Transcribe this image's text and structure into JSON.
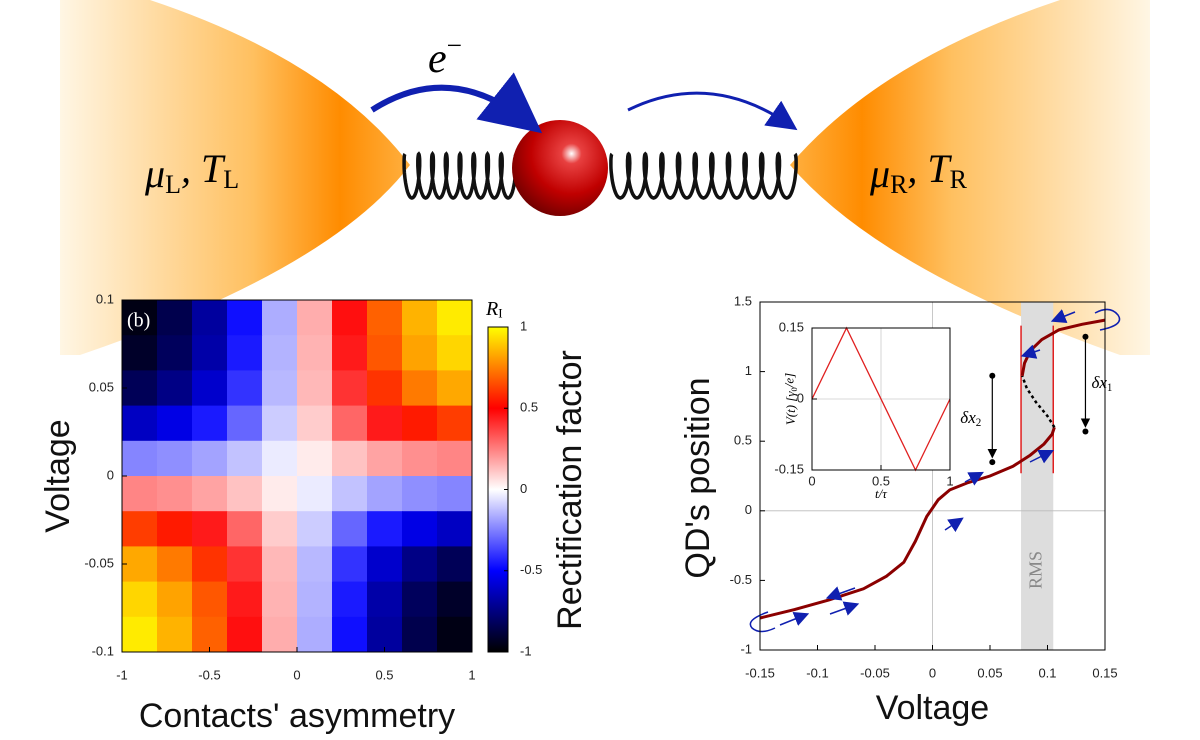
{
  "diagram": {
    "electron": [
      "e",
      "−"
    ],
    "left_lead": [
      "μ",
      "L",
      ", ",
      "T",
      "L"
    ],
    "right_lead": [
      "μ",
      "R",
      ", ",
      "T",
      "R"
    ]
  },
  "chart_data": [
    {
      "type": "heatmap",
      "annotation": "(b)",
      "xlabel": "Contacts' asymmetry",
      "ylabel": "Voltage",
      "x": [
        -0.9,
        -0.7,
        -0.5,
        -0.3,
        -0.1,
        0.1,
        0.3,
        0.5,
        0.7,
        0.9
      ],
      "y": [
        0.09,
        0.07,
        0.05,
        0.03,
        0.01,
        -0.01,
        -0.03,
        -0.05,
        -0.07,
        -0.09
      ],
      "z": [
        [
          -0.96,
          -0.85,
          -0.69,
          -0.47,
          -0.16,
          0.16,
          0.47,
          0.69,
          0.85,
          0.96
        ],
        [
          -0.92,
          -0.82,
          -0.67,
          -0.45,
          -0.15,
          0.15,
          0.45,
          0.67,
          0.82,
          0.92
        ],
        [
          -0.83,
          -0.74,
          -0.6,
          -0.4,
          -0.14,
          0.14,
          0.4,
          0.6,
          0.74,
          0.83
        ],
        [
          -0.62,
          -0.55,
          -0.45,
          -0.3,
          -0.1,
          0.1,
          0.3,
          0.45,
          0.55,
          0.62
        ],
        [
          -0.24,
          -0.22,
          -0.18,
          -0.12,
          -0.04,
          0.04,
          0.12,
          0.18,
          0.22,
          0.24
        ],
        [
          0.24,
          0.22,
          0.18,
          0.12,
          0.04,
          -0.04,
          -0.12,
          -0.18,
          -0.22,
          -0.24
        ],
        [
          0.62,
          0.55,
          0.45,
          0.3,
          0.1,
          -0.1,
          -0.3,
          -0.45,
          -0.55,
          -0.62
        ],
        [
          0.83,
          0.74,
          0.6,
          0.4,
          0.14,
          -0.14,
          -0.4,
          -0.6,
          -0.74,
          -0.83
        ],
        [
          0.92,
          0.82,
          0.67,
          0.45,
          0.15,
          -0.15,
          -0.45,
          -0.67,
          -0.82,
          -0.92
        ],
        [
          0.96,
          0.85,
          0.69,
          0.47,
          0.16,
          -0.16,
          -0.47,
          -0.69,
          -0.85,
          -0.96
        ]
      ],
      "xlim": [
        -1,
        1
      ],
      "xticks": [
        -1,
        -0.5,
        0,
        0.5,
        1
      ],
      "ylim": [
        -0.1,
        0.1
      ],
      "yticks": [
        -0.1,
        -0.05,
        0,
        0.05,
        0.1
      ],
      "colorscale": [
        "#000000",
        "#0000ff",
        "#ffffff",
        "#ff0000",
        "#ffff00"
      ],
      "colorbar": {
        "label": [
          "R",
          "I"
        ],
        "title": "Rectification factor",
        "lim": [
          -1,
          1
        ],
        "ticks": [
          -1,
          -0.5,
          0,
          0.5,
          1
        ]
      }
    },
    {
      "type": "line",
      "xlabel": "Voltage",
      "ylabel": "QD's position",
      "xlim": [
        -0.15,
        0.15
      ],
      "xticks": [
        -0.15,
        -0.1,
        -0.05,
        0,
        0.05,
        0.1,
        0.15
      ],
      "ylim": [
        -1,
        1.5
      ],
      "yticks": [
        -1,
        -0.5,
        0,
        0.5,
        1,
        1.5
      ],
      "zero_lines": true,
      "series": [
        {
          "color": "#8b0000",
          "x": [
            -0.15,
            -0.12,
            -0.09,
            -0.06,
            -0.04,
            -0.025,
            -0.015,
            -0.005,
            0.005,
            0.015,
            0.03,
            0.05,
            0.07,
            0.085,
            0.097,
            0.104,
            0.106
          ],
          "values": [
            -0.77,
            -0.71,
            -0.64,
            -0.56,
            -0.47,
            -0.37,
            -0.22,
            -0.04,
            0.08,
            0.15,
            0.2,
            0.25,
            0.32,
            0.4,
            0.48,
            0.55,
            0.6
          ]
        },
        {
          "color": "#000000",
          "dash": true,
          "x": [
            0.106,
            0.1,
            0.09,
            0.082,
            0.078
          ],
          "values": [
            0.6,
            0.68,
            0.78,
            0.88,
            0.97
          ]
        },
        {
          "color": "#8b0000",
          "x": [
            0.078,
            0.08,
            0.085,
            0.095,
            0.11,
            0.13,
            0.15
          ],
          "values": [
            0.97,
            1.06,
            1.15,
            1.23,
            1.3,
            1.34,
            1.37
          ]
        }
      ],
      "band": {
        "x": [
          0.077,
          0.105
        ],
        "label": "RMS",
        "color": "#dddddd"
      },
      "vlines": {
        "x": [
          0.077,
          0.105
        ],
        "y": [
          0.27,
          1.33
        ],
        "color": "#e02020"
      },
      "arrows": [
        {
          "label": [
            "δx",
            "2"
          ],
          "x": 0.052,
          "y": [
            0.97,
            0.35
          ]
        },
        {
          "label": [
            "δx",
            "1"
          ],
          "x": 0.133,
          "y": [
            1.25,
            0.57
          ]
        }
      ],
      "inset": {
        "type": "line",
        "xlabel": "t/τ",
        "ylabel": [
          "V(t) [γ",
          "0",
          "/e]"
        ],
        "x": [
          0,
          0.25,
          0.75,
          1
        ],
        "values": [
          0,
          0.15,
          -0.15,
          0
        ],
        "color": "#e02020",
        "xlim": [
          0,
          1
        ],
        "xticks": [
          0,
          0.5,
          1
        ],
        "ylim": [
          -0.15,
          0.15
        ],
        "yticks": [
          -0.15,
          0,
          0.15
        ]
      }
    }
  ]
}
